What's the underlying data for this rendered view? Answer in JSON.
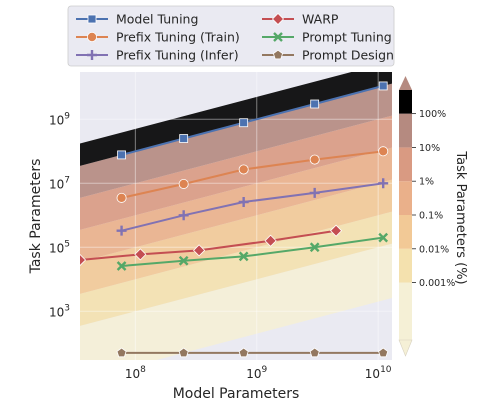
{
  "chart_data": {
    "type": "line",
    "xlabel": "Model Parameters",
    "ylabel": "Task Parameters",
    "colorbar_label": "Task Parameters (%)",
    "x_scale": "log",
    "y_scale": "log",
    "xlim": [
      35000000,
      13000000000
    ],
    "ylim": [
      30,
      30000000000
    ],
    "grid": true,
    "legend_position": "top",
    "x_ticks": [
      {
        "value": 100000000,
        "base": "10",
        "exp": "8"
      },
      {
        "value": 1000000000,
        "base": "10",
        "exp": "9"
      },
      {
        "value": 10000000000,
        "base": "10",
        "exp": "10"
      }
    ],
    "y_ticks": [
      {
        "value": 1000,
        "base": "10",
        "exp": "3"
      },
      {
        "value": 100000,
        "base": "10",
        "exp": "5"
      },
      {
        "value": 10000000,
        "base": "10",
        "exp": "7"
      },
      {
        "value": 1000000000,
        "base": "10",
        "exp": "9"
      }
    ],
    "colorbar_ticks": [
      {
        "label": "100%",
        "ratio": 1
      },
      {
        "label": "10%",
        "ratio": 0.1
      },
      {
        "label": "1%",
        "ratio": 0.01
      },
      {
        "label": "0.1%",
        "ratio": 0.001
      },
      {
        "label": "0.01%",
        "ratio": 0.0001
      },
      {
        "label": "0.001%",
        "ratio": 1e-05
      }
    ],
    "colorbar_range_ratio": [
      2e-07,
      5
    ],
    "band_colors": [
      "#f5f0d6",
      "#f4e1ae",
      "#f2c996",
      "#eab08a",
      "#d99a82",
      "#b58a80"
    ],
    "series": [
      {
        "name": "Model Tuning",
        "color": "#4c72b0",
        "marker": "square",
        "x": [
          77000000,
          250000000,
          780000000,
          3000000000,
          11000000000
        ],
        "y": [
          77000000,
          250000000,
          780000000,
          3000000000,
          11000000000
        ]
      },
      {
        "name": "Prefix Tuning (Train)",
        "color": "#dd8452",
        "marker": "circle",
        "x": [
          77000000,
          250000000,
          780000000,
          3000000000,
          11000000000
        ],
        "y": [
          3500000,
          9500000,
          27000000,
          55000000,
          100000000
        ]
      },
      {
        "name": "Prefix Tuning (Infer)",
        "color": "#8172b3",
        "marker": "plus",
        "x": [
          77000000,
          250000000,
          780000000,
          3000000000,
          11000000000
        ],
        "y": [
          330000,
          1000000,
          2600000,
          5000000,
          10000000
        ]
      },
      {
        "name": "WARP",
        "color": "#c44e52",
        "marker": "diamond",
        "x": [
          35000000,
          110000000,
          335000000,
          1300000000,
          4500000000
        ],
        "y": [
          40000,
          60000,
          80000,
          160000,
          330000
        ]
      },
      {
        "name": "Prompt Tuning",
        "color": "#55a868",
        "marker": "x",
        "x": [
          77000000,
          250000000,
          780000000,
          3000000000,
          11000000000
        ],
        "y": [
          26000,
          38000,
          52000,
          100000,
          200000
        ]
      },
      {
        "name": "Prompt Design",
        "color": "#937860",
        "marker": "pentagon",
        "x": [
          77000000,
          250000000,
          780000000,
          3000000000,
          11000000000
        ],
        "y": [
          50,
          50,
          50,
          50,
          50
        ]
      }
    ]
  }
}
